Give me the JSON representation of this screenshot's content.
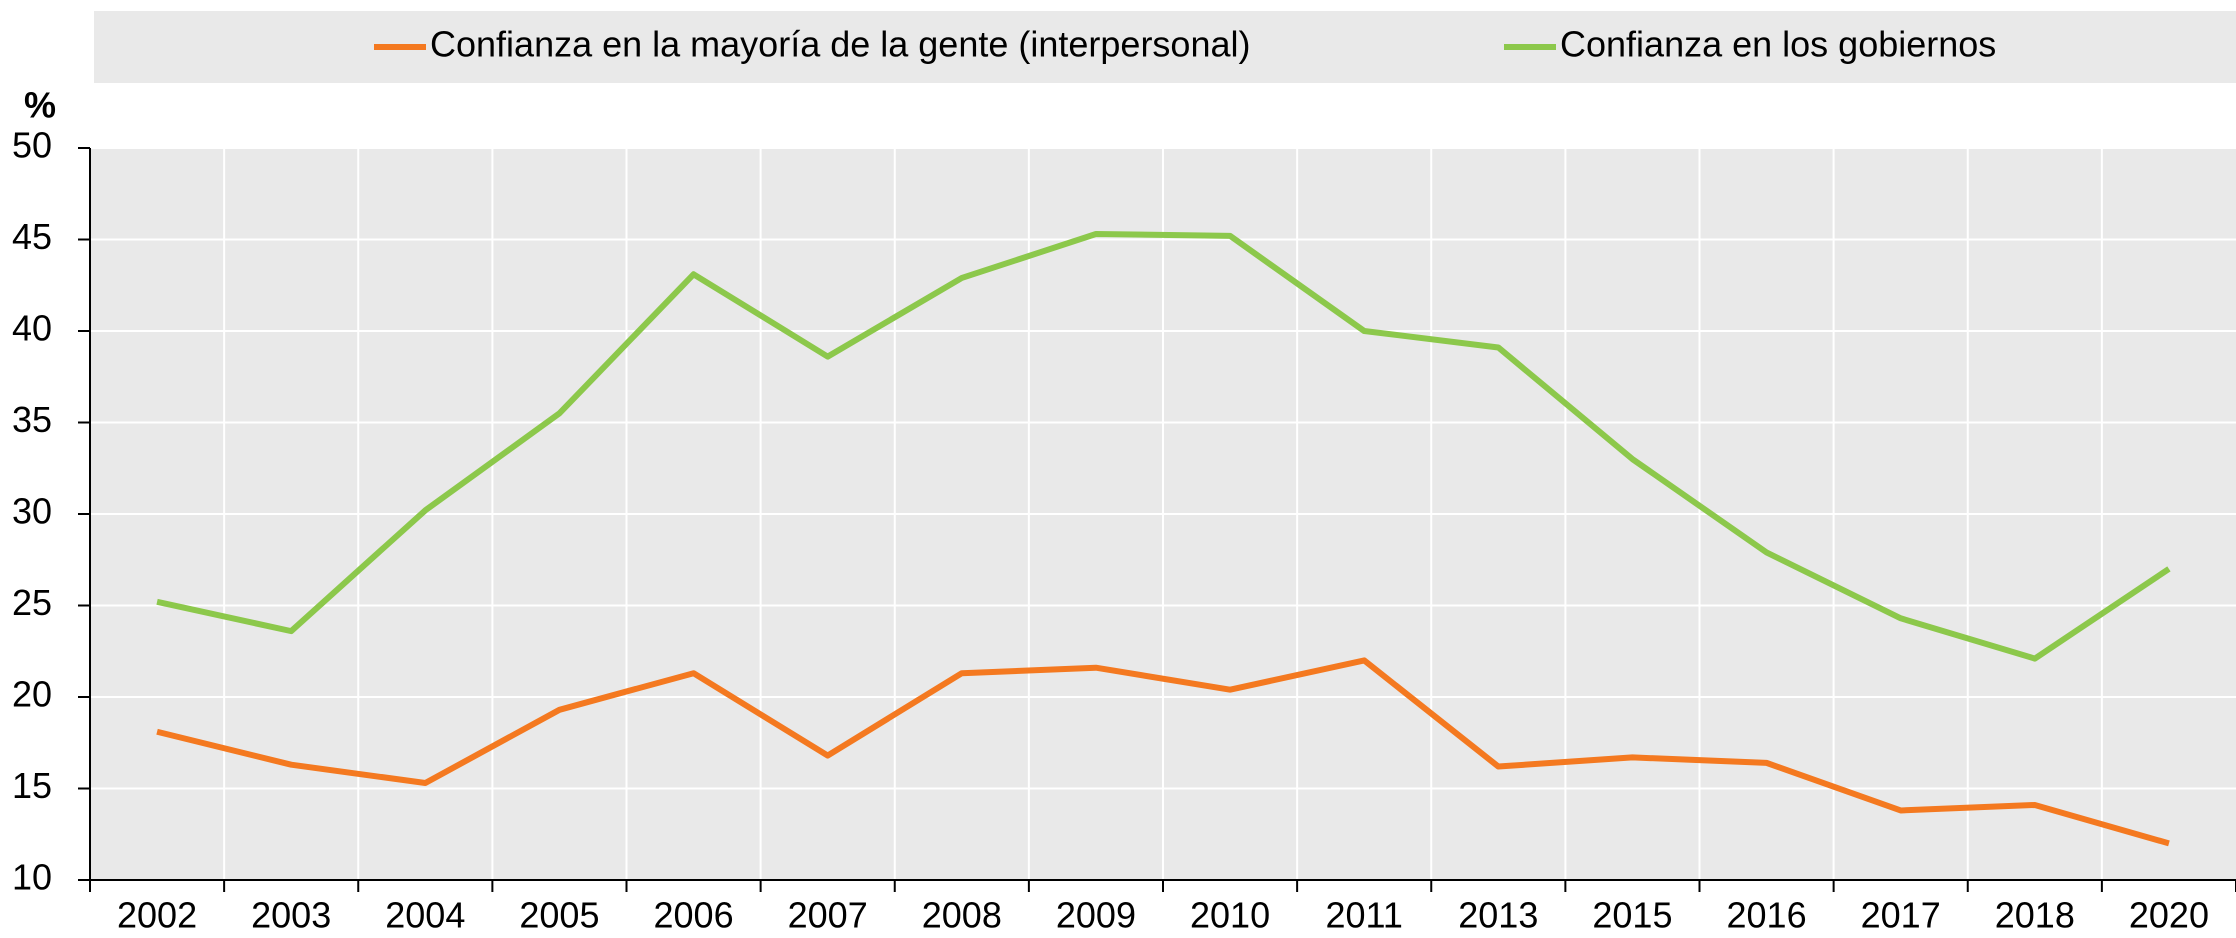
{
  "chart_data": {
    "type": "line",
    "y_label": "%",
    "categories": [
      "2002",
      "2003",
      "2004",
      "2005",
      "2006",
      "2007",
      "2008",
      "2009",
      "2010",
      "2011",
      "2013",
      "2015",
      "2016",
      "2017",
      "2018",
      "2020"
    ],
    "series": [
      {
        "name": "Confianza en la mayoría de la gente (interpersonal)",
        "color": "#f47920",
        "values": [
          18.1,
          16.3,
          15.3,
          19.3,
          21.3,
          16.8,
          21.3,
          21.6,
          20.4,
          22.0,
          16.2,
          16.7,
          16.4,
          13.8,
          14.1,
          12.0
        ]
      },
      {
        "name": "Confianza en los gobiernos",
        "color": "#8cc84b",
        "values": [
          25.2,
          23.6,
          30.2,
          35.5,
          43.1,
          38.6,
          42.9,
          45.3,
          45.2,
          40.0,
          39.1,
          33.0,
          27.9,
          24.3,
          22.1,
          27.0
        ]
      }
    ],
    "ylim": [
      10,
      50
    ],
    "yticks": [
      10,
      15,
      20,
      25,
      30,
      35,
      40,
      45,
      50
    ],
    "grid": true,
    "legend": "top"
  }
}
